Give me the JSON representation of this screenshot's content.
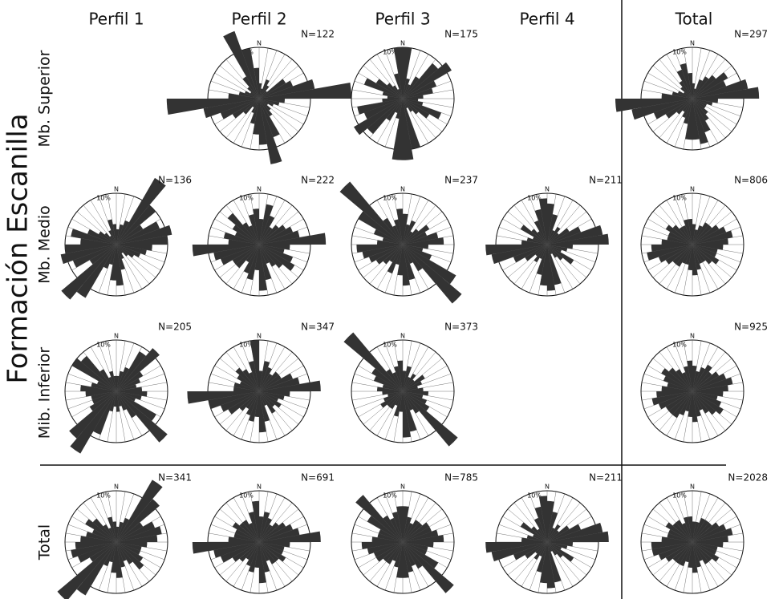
{
  "column_headers": [
    "Perfil 1",
    "Perfil 2",
    "Perfil 3",
    "Perfil 4",
    "Total"
  ],
  "row_labels": [
    "Mb. Superior",
    "Mb. Medio",
    "Mib. Inferior",
    "Total"
  ],
  "group_label": "Formación Escanilla",
  "chart_data": [
    {
      "type": "rose",
      "n_label": "N=122",
      "north_label": "N",
      "rlim": [
        0,
        10
      ],
      "rticks": [
        {
          "value": 10,
          "label": "10%"
        }
      ],
      "color": "#333333",
      "values": [
        3,
        2,
        4,
        3,
        2,
        6,
        7,
        11,
        18,
        5,
        4,
        3,
        2,
        3,
        4,
        8,
        13,
        9,
        7,
        5,
        3,
        2,
        4,
        6,
        8,
        11,
        18,
        6,
        4,
        3,
        2,
        3,
        5,
        14,
        10,
        6
      ]
    },
    {
      "type": "rose",
      "n_label": "N=175",
      "north_label": "N",
      "rlim": [
        0,
        10
      ],
      "rticks": [
        {
          "value": 10,
          "label": "10%"
        }
      ],
      "color": "#333333",
      "values": [
        10,
        4,
        3,
        5,
        9,
        11,
        7,
        6,
        4,
        3,
        4,
        8,
        6,
        4,
        3,
        2,
        10,
        12,
        12,
        4,
        3,
        5,
        9,
        11,
        8,
        9,
        4,
        3,
        4,
        8,
        6,
        4,
        3,
        2,
        5,
        10
      ]
    },
    {
      "type": "rose",
      "n_label": "N=297",
      "north_label": "N",
      "rlim": [
        0,
        10
      ],
      "rticks": [
        {
          "value": 10,
          "label": "10%"
        }
      ],
      "color": "#333333",
      "values": [
        3,
        2,
        4,
        5,
        6,
        8,
        7,
        11,
        13,
        5,
        4,
        3,
        3,
        4,
        5,
        7,
        9,
        8,
        8,
        5,
        4,
        3,
        4,
        6,
        8,
        12,
        15,
        6,
        4,
        3,
        2,
        3,
        4,
        6,
        7,
        5
      ]
    },
    {
      "type": "rose",
      "n_label": "N=136",
      "north_label": "N",
      "rlim": [
        0,
        10
      ],
      "rticks": [
        {
          "value": 10,
          "label": "10%"
        }
      ],
      "color": "#333333",
      "values": [
        3,
        4,
        5,
        15,
        10,
        6,
        9,
        11,
        10,
        7,
        6,
        5,
        4,
        3,
        2,
        3,
        5,
        8,
        7,
        4,
        5,
        12,
        14,
        6,
        9,
        11,
        10,
        7,
        9,
        6,
        4,
        3,
        2,
        3,
        5,
        4
      ]
    },
    {
      "type": "rose",
      "n_label": "N=222",
      "north_label": "N",
      "rlim": [
        0,
        10
      ],
      "rticks": [
        {
          "value": 10,
          "label": "10%"
        }
      ],
      "color": "#333333",
      "values": [
        5,
        8,
        6,
        4,
        5,
        6,
        7,
        8,
        13,
        6,
        5,
        7,
        8,
        6,
        5,
        4,
        7,
        9,
        5,
        7,
        6,
        4,
        6,
        6,
        8,
        9,
        13,
        6,
        7,
        5,
        6,
        8,
        5,
        4,
        6,
        7
      ]
    },
    {
      "type": "rose",
      "n_label": "N=237",
      "north_label": "N",
      "rlim": [
        0,
        10
      ],
      "rticks": [
        {
          "value": 10,
          "label": "10%"
        }
      ],
      "color": "#333333",
      "values": [
        6,
        4,
        5,
        3,
        4,
        6,
        5,
        7,
        8,
        5,
        4,
        6,
        12,
        15,
        6,
        4,
        7,
        8,
        6,
        4,
        6,
        4,
        5,
        6,
        7,
        8,
        9,
        5,
        4,
        6,
        10,
        16,
        6,
        4,
        5,
        7
      ]
    },
    {
      "type": "rose",
      "n_label": "N=211",
      "north_label": "N",
      "rlim": [
        0,
        10
      ],
      "rticks": [
        {
          "value": 10,
          "label": "10%"
        }
      ],
      "color": "#333333",
      "values": [
        8,
        6,
        3,
        4,
        3,
        5,
        7,
        11,
        12,
        5,
        4,
        3,
        6,
        4,
        3,
        2,
        8,
        9,
        8,
        6,
        3,
        4,
        3,
        5,
        7,
        11,
        12,
        5,
        4,
        3,
        6,
        4,
        3,
        5,
        7,
        9
      ]
    },
    {
      "type": "rose",
      "n_label": "N=806",
      "north_label": "N",
      "rlim": [
        0,
        10
      ],
      "rticks": [
        {
          "value": 10,
          "label": "10%"
        }
      ],
      "color": "#333333",
      "values": [
        4,
        3,
        4,
        5,
        5,
        6,
        7,
        8,
        7,
        6,
        5,
        5,
        6,
        5,
        4,
        4,
        5,
        6,
        5,
        4,
        4,
        5,
        5,
        6,
        7,
        9,
        8,
        6,
        5,
        5,
        6,
        5,
        4,
        4,
        5,
        5
      ]
    },
    {
      "type": "rose",
      "n_label": "N=205",
      "north_label": "N",
      "rlim": [
        0,
        10
      ],
      "rticks": [
        {
          "value": 10,
          "label": "10%"
        }
      ],
      "color": "#333333",
      "values": [
        3,
        4,
        5,
        9,
        11,
        6,
        5,
        4,
        5,
        6,
        5,
        4,
        9,
        13,
        6,
        4,
        3,
        4,
        3,
        4,
        9,
        14,
        12,
        6,
        5,
        5,
        6,
        7,
        5,
        4,
        10,
        9,
        5,
        3,
        4,
        3
      ]
    },
    {
      "type": "rose",
      "n_label": "N=347",
      "north_label": "N",
      "rlim": [
        0,
        10
      ],
      "rticks": [
        {
          "value": 10,
          "label": "10%"
        }
      ],
      "color": "#333333",
      "values": [
        4,
        6,
        5,
        4,
        5,
        5,
        7,
        8,
        12,
        6,
        5,
        4,
        5,
        4,
        5,
        3,
        6,
        8,
        5,
        6,
        5,
        4,
        5,
        7,
        8,
        10,
        14,
        5,
        5,
        4,
        5,
        6,
        5,
        4,
        6,
        10
      ]
    },
    {
      "type": "rose",
      "n_label": "N=373",
      "north_label": "N",
      "rlim": [
        0,
        10
      ],
      "rticks": [
        {
          "value": 10,
          "label": "10%"
        }
      ],
      "color": "#333333",
      "values": [
        4,
        5,
        3,
        4,
        3,
        5,
        4,
        3,
        4,
        5,
        4,
        5,
        6,
        14,
        5,
        4,
        8,
        9,
        4,
        5,
        3,
        4,
        4,
        5,
        4,
        3,
        4,
        5,
        4,
        6,
        7,
        15,
        5,
        4,
        5,
        6
      ]
    },
    {
      "type": "rose",
      "n_label": "N=925",
      "north_label": "N",
      "rlim": [
        0,
        10
      ],
      "rticks": [
        {
          "value": 10,
          "label": "10%"
        }
      ],
      "color": "#333333",
      "values": [
        5,
        4,
        5,
        6,
        5,
        6,
        7,
        8,
        7,
        6,
        5,
        6,
        7,
        6,
        5,
        4,
        5,
        6,
        5,
        4,
        5,
        6,
        6,
        6,
        7,
        8,
        7,
        6,
        5,
        6,
        7,
        6,
        5,
        4,
        5,
        6
      ]
    },
    {
      "type": "rose",
      "n_label": "N=341",
      "north_label": "N",
      "rlim": [
        0,
        10
      ],
      "rticks": [
        {
          "value": 10,
          "label": "10%"
        }
      ],
      "color": "#333333",
      "values": [
        3,
        4,
        5,
        14,
        11,
        6,
        8,
        9,
        8,
        6,
        5,
        5,
        6,
        7,
        5,
        4,
        5,
        7,
        6,
        4,
        5,
        12,
        15,
        6,
        8,
        9,
        8,
        7,
        6,
        5,
        7,
        6,
        4,
        3,
        5,
        4
      ]
    },
    {
      "type": "rose",
      "n_label": "N=691",
      "north_label": "N",
      "rlim": [
        0,
        10
      ],
      "rticks": [
        {
          "value": 10,
          "label": "10%"
        }
      ],
      "color": "#333333",
      "values": [
        5,
        6,
        5,
        4,
        5,
        6,
        7,
        8,
        12,
        6,
        5,
        5,
        6,
        5,
        5,
        4,
        6,
        8,
        5,
        6,
        5,
        4,
        5,
        6,
        8,
        9,
        13,
        6,
        5,
        5,
        6,
        5,
        5,
        4,
        6,
        8
      ]
    },
    {
      "type": "rose",
      "n_label": "N=785",
      "north_label": "N",
      "rlim": [
        0,
        10
      ],
      "rticks": [
        {
          "value": 10,
          "label": "10%"
        }
      ],
      "color": "#333333",
      "values": [
        7,
        5,
        4,
        5,
        5,
        6,
        6,
        7,
        8,
        6,
        5,
        5,
        8,
        13,
        6,
        5,
        6,
        7,
        7,
        5,
        4,
        5,
        5,
        6,
        6,
        7,
        8,
        6,
        5,
        5,
        8,
        12,
        6,
        5,
        6,
        7
      ]
    },
    {
      "type": "rose",
      "n_label": "N=211",
      "north_label": "N",
      "rlim": [
        0,
        10
      ],
      "rticks": [
        {
          "value": 10,
          "label": "10%"
        }
      ],
      "color": "#333333",
      "values": [
        8,
        6,
        3,
        4,
        3,
        5,
        7,
        11,
        12,
        5,
        4,
        3,
        6,
        4,
        3,
        2,
        8,
        9,
        8,
        6,
        3,
        4,
        3,
        5,
        7,
        11,
        12,
        5,
        4,
        3,
        6,
        4,
        3,
        5,
        7,
        9
      ]
    },
    {
      "type": "rose",
      "n_label": "N=2028",
      "north_label": "N",
      "rlim": [
        0,
        10
      ],
      "rticks": [
        {
          "value": 10,
          "label": "10%"
        }
      ],
      "color": "#333333",
      "values": [
        4,
        4,
        5,
        5,
        5,
        6,
        7,
        8,
        7,
        6,
        5,
        5,
        6,
        5,
        5,
        4,
        5,
        6,
        5,
        4,
        5,
        5,
        5,
        6,
        7,
        8,
        8,
        6,
        5,
        5,
        6,
        5,
        5,
        4,
        5,
        5
      ]
    }
  ]
}
